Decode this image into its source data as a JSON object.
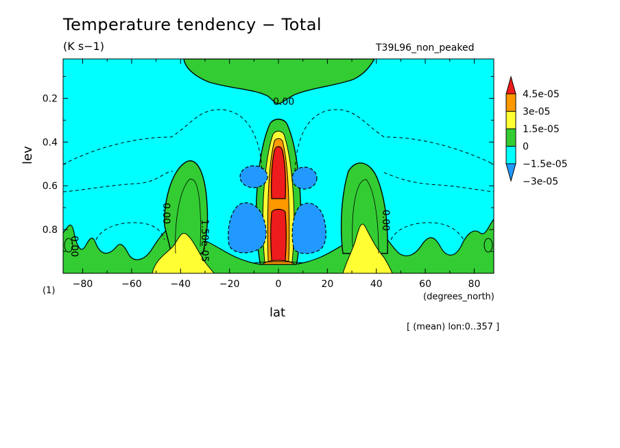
{
  "header": {
    "title": "Temperature tendency − Total",
    "units": "(K s−1)",
    "run_name": "T39L96_non_peaked",
    "footnote": "[ (mean) lon:0..357 ]"
  },
  "colors": {
    "red": "#ee1c1c",
    "orange": "#ff9900",
    "yellow": "#ffff33",
    "green": "#33cc33",
    "cyan": "#00ffff",
    "blue": "#2299ff",
    "contour": "#000000"
  },
  "chart_data": {
    "type": "heatmap",
    "subtype": "filled-contour",
    "xlabel": "lat",
    "xunit": "(degrees_north)",
    "ylabel": "lev",
    "yunit": "(1)",
    "xlim": [
      -88,
      88
    ],
    "ylim": [
      1.0,
      0.02
    ],
    "x_ticks": [
      -80,
      -60,
      -40,
      -20,
      0,
      20,
      40,
      60,
      80
    ],
    "y_ticks": [
      0.2,
      0.4,
      0.6,
      0.8
    ],
    "colorbar": {
      "levels": [
        "4.5e-05",
        "3e-05",
        "1.5e-05",
        "0",
        "−1.5e-05",
        "−3e-05"
      ],
      "colors": [
        "#ee1c1c",
        "#ff9900",
        "#ffff33",
        "#33cc33",
        "#00ffff",
        "#2299ff"
      ],
      "extend": "both"
    },
    "contour_labels": [
      "0.00",
      "1.50e-05",
      "0.00",
      "0.00",
      "0.00"
    ]
  }
}
